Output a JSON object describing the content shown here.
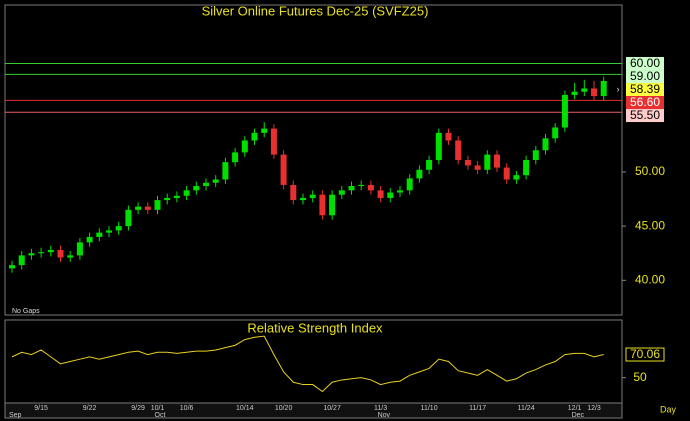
{
  "chart_data": [
    {
      "type": "candlestick",
      "title": "Silver Online Futures Dec-25 (SVFZ25)",
      "annotation": "No Gaps",
      "categories": [
        "",
        null,
        null,
        "9/15",
        null,
        null,
        null,
        null,
        "9/22",
        null,
        null,
        null,
        null,
        "9/29",
        null,
        "10/1",
        null,
        null,
        "10/6",
        null,
        null,
        null,
        null,
        null,
        "10/14",
        null,
        null,
        null,
        "10/20",
        null,
        null,
        null,
        null,
        "10/27",
        null,
        null,
        null,
        null,
        "11/3",
        null,
        null,
        null,
        null,
        "11/10",
        null,
        null,
        null,
        null,
        "11/17",
        null,
        null,
        null,
        null,
        "11/24",
        null,
        null,
        null,
        null,
        "12/1",
        null,
        "12/3",
        null
      ],
      "month_categories": [
        "Sep",
        null,
        null,
        null,
        null,
        null,
        null,
        null,
        null,
        null,
        null,
        null,
        null,
        null,
        null,
        "Oct",
        null,
        null,
        null,
        null,
        null,
        null,
        null,
        null,
        null,
        null,
        null,
        null,
        null,
        null,
        null,
        null,
        null,
        null,
        null,
        null,
        null,
        null,
        "Nov",
        null,
        null,
        null,
        null,
        null,
        null,
        null,
        null,
        null,
        null,
        null,
        null,
        null,
        null,
        null,
        null,
        null,
        null,
        null,
        "Dec",
        null,
        null,
        null
      ],
      "open": [
        41.1,
        41.4,
        42.3,
        42.5,
        42.6,
        42.8,
        42.1,
        42.3,
        43.5,
        44.0,
        44.4,
        44.6,
        45.0,
        46.5,
        46.8,
        46.5,
        47.4,
        47.6,
        47.8,
        48.3,
        48.7,
        49.0,
        49.3,
        50.9,
        51.8,
        52.9,
        53.6,
        54.0,
        51.6,
        48.8,
        47.4,
        47.6,
        47.9,
        46.0,
        47.9,
        48.3,
        48.7,
        48.8,
        48.3,
        47.6,
        48.1,
        48.3,
        49.4,
        50.2,
        51.1,
        53.6,
        52.9,
        51.1,
        50.6,
        50.2,
        51.6,
        50.4,
        49.3,
        49.7,
        51.1,
        52.0,
        53.1,
        54.1,
        57.1,
        57.4,
        57.7,
        57.0
      ],
      "high": [
        41.8,
        42.7,
        42.9,
        43.0,
        43.2,
        43.2,
        42.7,
        43.9,
        44.4,
        44.8,
        45.0,
        45.4,
        46.9,
        47.2,
        47.2,
        47.8,
        48.0,
        48.2,
        48.7,
        49.1,
        49.4,
        49.7,
        51.3,
        52.2,
        53.3,
        54.0,
        54.6,
        54.4,
        52.0,
        49.2,
        48.0,
        48.3,
        48.3,
        48.3,
        48.7,
        49.1,
        49.2,
        49.2,
        48.7,
        48.5,
        48.7,
        49.8,
        50.6,
        51.5,
        54.0,
        54.0,
        53.3,
        51.5,
        51.0,
        52.0,
        52.0,
        50.8,
        50.1,
        51.5,
        52.4,
        53.5,
        54.5,
        57.5,
        58.2,
        58.5,
        58.4,
        58.79
      ],
      "low": [
        40.7,
        41.0,
        41.9,
        42.1,
        42.2,
        41.7,
        41.7,
        41.9,
        43.1,
        43.6,
        44.0,
        44.2,
        44.6,
        46.1,
        46.1,
        46.1,
        47.0,
        47.2,
        47.4,
        47.9,
        48.3,
        48.6,
        48.9,
        50.5,
        51.4,
        52.5,
        53.2,
        51.2,
        48.4,
        47.0,
        47.0,
        47.2,
        45.6,
        45.6,
        47.5,
        47.9,
        48.3,
        47.9,
        47.2,
        47.2,
        47.7,
        47.9,
        49.0,
        49.8,
        50.7,
        52.5,
        50.7,
        50.2,
        49.8,
        49.8,
        50.0,
        48.9,
        48.9,
        49.3,
        50.7,
        51.6,
        52.7,
        53.7,
        56.7,
        57.0,
        56.6,
        56.6
      ],
      "close": [
        41.4,
        42.3,
        42.5,
        42.6,
        42.8,
        42.1,
        42.3,
        43.5,
        44.0,
        44.4,
        44.6,
        45.0,
        46.5,
        46.8,
        46.5,
        47.4,
        47.6,
        47.8,
        48.3,
        48.7,
        49.0,
        49.3,
        50.9,
        51.8,
        52.9,
        53.6,
        54.0,
        51.6,
        48.8,
        47.4,
        47.6,
        47.9,
        46.0,
        47.9,
        48.3,
        48.7,
        48.8,
        48.3,
        47.6,
        48.1,
        48.3,
        49.4,
        50.2,
        51.1,
        53.6,
        52.9,
        51.1,
        50.6,
        50.2,
        51.6,
        50.4,
        49.3,
        49.7,
        51.1,
        52.0,
        53.1,
        54.1,
        57.1,
        57.4,
        57.7,
        57.0,
        58.39
      ],
      "up_color": "#00e000",
      "down_color": "#e83030",
      "ylim": [
        36.8,
        65.4
      ],
      "yticks": [
        {
          "value": 40,
          "label": "40.00"
        },
        {
          "value": 45,
          "label": "45.00"
        },
        {
          "value": 50,
          "label": "50.00"
        }
      ],
      "levels": [
        {
          "value": 60,
          "label": "60.00",
          "color": "#33cc33",
          "box": "#ccffcc"
        },
        {
          "value": 59,
          "label": "59.00",
          "color": "#33cc33",
          "box": "#ccffcc"
        },
        {
          "value": 56.6,
          "label": "56.60",
          "color": "#e03030",
          "box": "#e83030"
        },
        {
          "value": 55.5,
          "label": "55.50",
          "color": "#e86060",
          "box": "#ffcccc"
        }
      ],
      "last_color": "#ffff40"
    },
    {
      "type": "line",
      "title": "Relative Strength Index",
      "values": [
        68,
        72,
        70,
        74,
        68,
        62,
        64,
        66,
        68,
        66,
        68,
        70,
        72,
        73,
        70,
        72,
        72,
        71,
        72,
        73,
        73,
        74,
        76,
        78,
        83,
        85,
        86,
        70,
        55,
        46,
        44,
        44,
        38,
        46,
        48,
        49,
        50,
        48,
        44,
        46,
        47,
        52,
        55,
        58,
        66,
        64,
        56,
        54,
        52,
        57,
        52,
        47,
        49,
        54,
        57,
        61,
        64,
        70,
        71,
        71,
        68,
        70.06
      ],
      "color": "#e8d020",
      "ylim": [
        28,
        100
      ],
      "yticks": [
        50
      ],
      "x_label": "Day"
    }
  ]
}
